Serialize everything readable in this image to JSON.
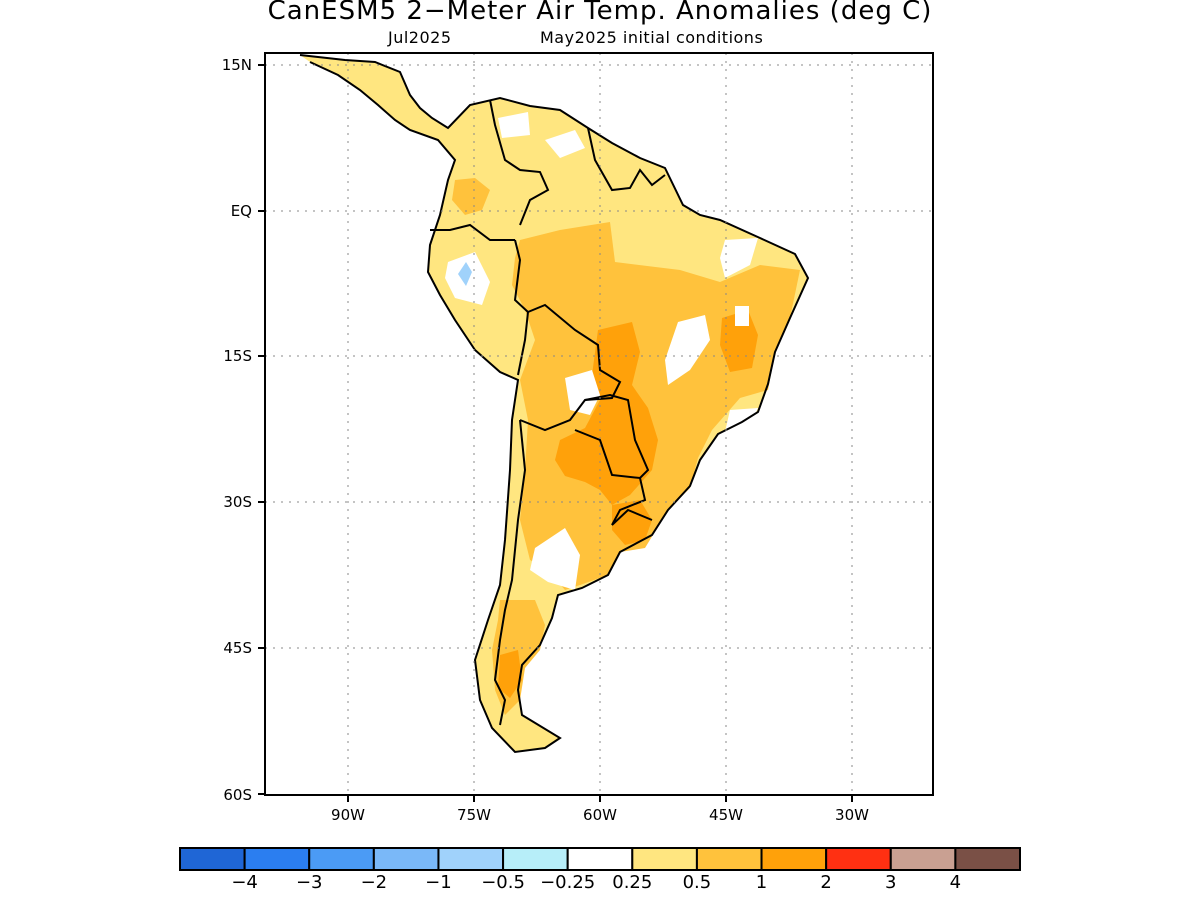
{
  "title": "CanESM5 2−Meter Air Temp. Anomalies (deg C)",
  "subtitle_left": "Jul2025",
  "subtitle_right": "May2025 initial conditions",
  "map": {
    "region": "South America",
    "lon_range": [
      -98,
      -24
    ],
    "lat_range": [
      -60,
      15
    ],
    "grid": "dotted",
    "lat_labels": [
      "15N",
      "EQ",
      "15S",
      "30S",
      "45S",
      "60S"
    ],
    "lon_labels": [
      "90W",
      "75W",
      "60W",
      "45W",
      "30W"
    ]
  },
  "colorbar": {
    "colors": [
      "#1f66d6",
      "#2b7ef0",
      "#4b9bf5",
      "#7ab8f8",
      "#a0d2fb",
      "#b7eef9",
      "#ffffff",
      "#ffe680",
      "#ffc23c",
      "#ffa10a",
      "#ff3012",
      "#c9a092",
      "#7a5046"
    ],
    "labels": [
      "−4",
      "−3",
      "−2",
      "−1",
      "−0.5",
      "−0.25",
      "0.25",
      "0.5",
      "1",
      "2",
      "3",
      "4"
    ]
  }
}
